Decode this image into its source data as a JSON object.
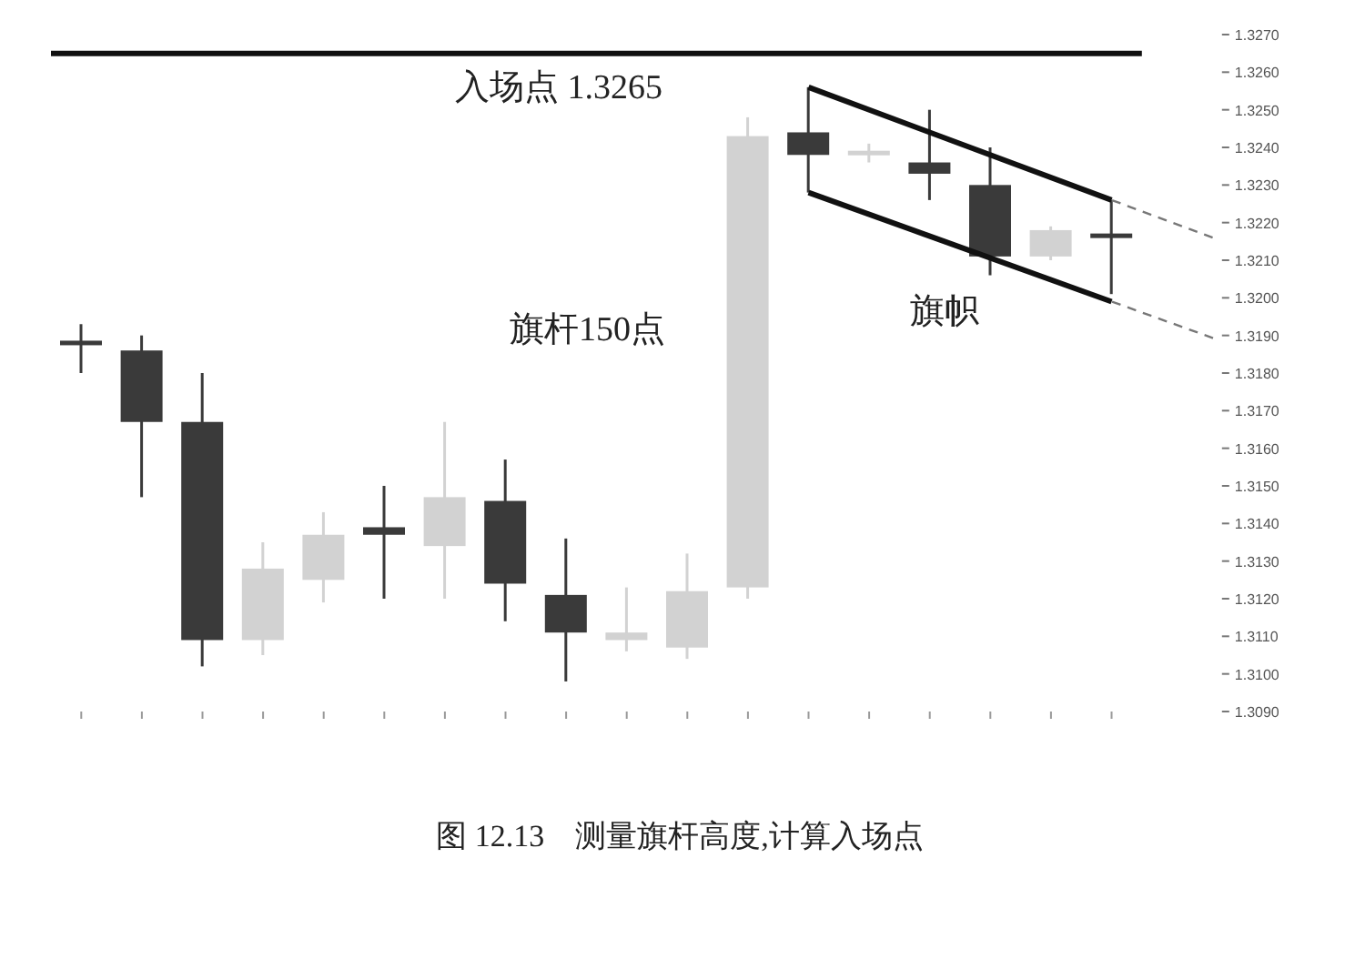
{
  "chart_data": {
    "type": "candlestick",
    "title": "图 12.13　测量旗杆高度,计算入场点",
    "categories": [
      null,
      null,
      null,
      null,
      null,
      null,
      null,
      null,
      null,
      null,
      null,
      null,
      null,
      null,
      null,
      null,
      null,
      null
    ],
    "ohlc": [
      [
        1.3188,
        1.3193,
        1.318,
        1.3188
      ],
      [
        1.3186,
        1.319,
        1.3147,
        1.3167
      ],
      [
        1.3167,
        1.318,
        1.3102,
        1.3109
      ],
      [
        1.3109,
        1.3135,
        1.3105,
        1.3128
      ],
      [
        1.3125,
        1.3143,
        1.3119,
        1.3137
      ],
      [
        1.3139,
        1.315,
        1.312,
        1.3137
      ],
      [
        1.3134,
        1.3167,
        1.312,
        1.3147
      ],
      [
        1.3146,
        1.3157,
        1.3114,
        1.3124
      ],
      [
        1.3121,
        1.3136,
        1.3098,
        1.3111
      ],
      [
        1.3109,
        1.3123,
        1.3106,
        1.3111
      ],
      [
        1.3107,
        1.3132,
        1.3104,
        1.3122
      ],
      [
        1.3123,
        1.3248,
        1.312,
        1.3243
      ],
      [
        1.3244,
        1.3256,
        1.3228,
        1.3238
      ],
      [
        1.3238,
        1.3241,
        1.3236,
        1.3239
      ],
      [
        1.3236,
        1.325,
        1.3226,
        1.3233
      ],
      [
        1.323,
        1.324,
        1.3206,
        1.3211
      ],
      [
        1.3211,
        1.3219,
        1.321,
        1.3218
      ],
      [
        1.3217,
        1.3226,
        1.3201,
        1.3216
      ]
    ],
    "colors": [
      "#3a3a3a",
      "#3a3a3a",
      "#3a3a3a",
      "#d2d2d2",
      "#d2d2d2",
      "#3a3a3a",
      "#d2d2d2",
      "#3a3a3a",
      "#3a3a3a",
      "#d2d2d2",
      "#d2d2d2",
      "#d2d2d2",
      "#3a3a3a",
      "#d2d2d2",
      "#3a3a3a",
      "#3a3a3a",
      "#d2d2d2",
      "#3a3a3a"
    ],
    "series": [
      {
        "type": "line",
        "color": "#111111",
        "values": [
          null,
          null,
          null,
          null,
          null,
          null,
          null,
          null,
          null,
          null,
          null,
          null,
          1.3256,
          null,
          null,
          null,
          null,
          1.3226
        ]
      },
      {
        "type": "line",
        "color": "#111111",
        "values": [
          null,
          null,
          null,
          null,
          null,
          null,
          null,
          null,
          null,
          null,
          null,
          null,
          1.3228,
          null,
          null,
          null,
          null,
          1.3199
        ]
      }
    ],
    "ylim": [
      1.309,
      1.327
    ],
    "yticks": [
      {
        "value": 1.309,
        "label": "1.3090"
      },
      {
        "value": 1.31,
        "label": "1.3100"
      },
      {
        "value": 1.311,
        "label": "1.3110"
      },
      {
        "value": 1.312,
        "label": "1.3120"
      },
      {
        "value": 1.313,
        "label": "1.3130"
      },
      {
        "value": 1.314,
        "label": "1.3140"
      },
      {
        "value": 1.315,
        "label": "1.3150"
      },
      {
        "value": 1.316,
        "label": "1.3160"
      },
      {
        "value": 1.317,
        "label": "1.3170"
      },
      {
        "value": 1.318,
        "label": "1.3180"
      },
      {
        "value": 1.319,
        "label": "1.3190"
      },
      {
        "value": 1.32,
        "label": "1.3200"
      },
      {
        "value": 1.321,
        "label": "1.3210"
      },
      {
        "value": 1.322,
        "label": "1.3220"
      },
      {
        "value": 1.323,
        "label": "1.3230"
      },
      {
        "value": 1.324,
        "label": "1.3240"
      },
      {
        "value": 1.325,
        "label": "1.3250"
      },
      {
        "value": 1.326,
        "label": "1.3260"
      },
      {
        "value": 1.327,
        "label": "1.3270"
      }
    ],
    "ref_lines": [
      {
        "axis": "y",
        "value": 1.3265,
        "label": "入场点 1.3265",
        "color": "#111111"
      }
    ],
    "annotations": [
      "旗杆150点",
      "旗帜"
    ],
    "line_style": "solid"
  }
}
